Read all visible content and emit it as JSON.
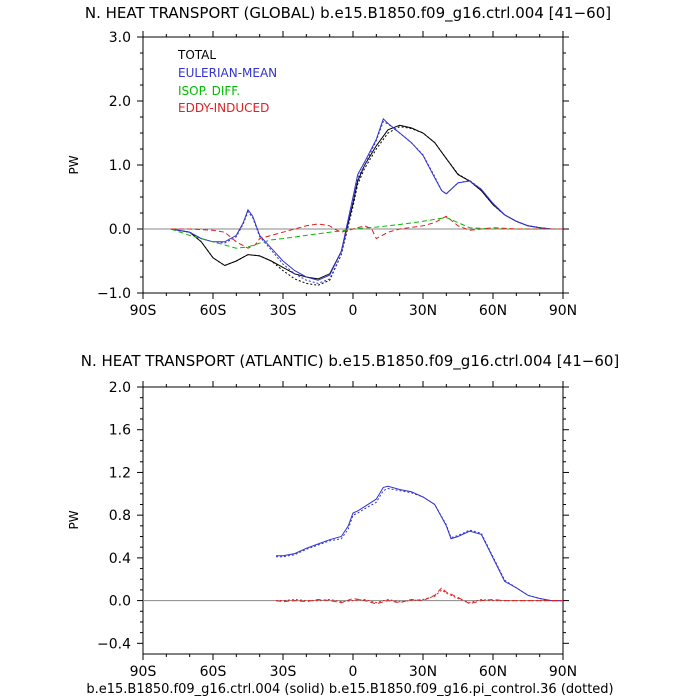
{
  "caption": "b.e15.B1850.f09_g16.ctrl.004 (solid) b.e15.B1850.f09_g16.pi_control.36 (dotted)",
  "colors": {
    "total": "#000000",
    "eulerian": "#3333cc",
    "isop": "#00bb00",
    "eddy": "#dd2222"
  },
  "chart_data": [
    {
      "type": "line",
      "title": "N. HEAT TRANSPORT (GLOBAL) b.e15.B1850.f09_g16.ctrl.004 [41−60]",
      "ylabel": "PW",
      "xlabel": "",
      "xlim": [
        -90,
        90
      ],
      "ylim": [
        -1.0,
        3.0
      ],
      "xticks": [
        -90,
        -60,
        -30,
        0,
        30,
        60,
        90
      ],
      "xtick_labels": [
        "90S",
        "60S",
        "30S",
        "0",
        "30N",
        "60N",
        "90N"
      ],
      "yticks": [
        -1.0,
        0.0,
        1.0,
        2.0,
        3.0
      ],
      "ytick_labels": [
        "−1.0",
        "0.0",
        "1.0",
        "2.0",
        "3.0"
      ],
      "legend": [
        "TOTAL",
        "EULERIAN-MEAN",
        "ISOP. DIFF.",
        "EDDY-INDUCED"
      ],
      "legend_position": "top-left",
      "series": [
        {
          "key": "total",
          "style": "solid",
          "color": "#000000",
          "x": [
            -78,
            -70,
            -65,
            -60,
            -55,
            -50,
            -45,
            -40,
            -35,
            -30,
            -25,
            -20,
            -15,
            -10,
            -5,
            0,
            2,
            5,
            10,
            15,
            20,
            25,
            30,
            35,
            40,
            45,
            50,
            55,
            60,
            65,
            70,
            75,
            80,
            85,
            90
          ],
          "y": [
            0.0,
            -0.05,
            -0.2,
            -0.45,
            -0.57,
            -0.5,
            -0.4,
            -0.42,
            -0.5,
            -0.6,
            -0.7,
            -0.75,
            -0.78,
            -0.7,
            -0.35,
            0.4,
            0.75,
            1.0,
            1.3,
            1.55,
            1.62,
            1.58,
            1.5,
            1.35,
            1.1,
            0.85,
            0.75,
            0.6,
            0.38,
            0.22,
            0.12,
            0.05,
            0.02,
            0.0,
            0.0
          ]
        },
        {
          "key": "total",
          "style": "dotted",
          "color": "#000000",
          "x": [
            -78,
            -70,
            -65,
            -60,
            -55,
            -50,
            -45,
            -40,
            -35,
            -30,
            -25,
            -20,
            -15,
            -10,
            -5,
            0,
            2,
            5,
            10,
            15,
            20,
            25,
            30,
            35,
            40,
            45,
            50,
            55,
            60,
            65,
            70,
            75,
            80,
            85,
            90
          ],
          "y": [
            0.0,
            -0.05,
            -0.2,
            -0.45,
            -0.57,
            -0.5,
            -0.4,
            -0.42,
            -0.5,
            -0.65,
            -0.78,
            -0.85,
            -0.88,
            -0.8,
            -0.4,
            0.35,
            0.7,
            0.95,
            1.25,
            1.5,
            1.6,
            1.57,
            1.5,
            1.35,
            1.1,
            0.86,
            0.75,
            0.6,
            0.38,
            0.22,
            0.12,
            0.05,
            0.02,
            0.0,
            0.0
          ]
        },
        {
          "key": "eulerian",
          "style": "solid",
          "color": "#3333cc",
          "x": [
            -78,
            -70,
            -65,
            -60,
            -55,
            -50,
            -47,
            -45,
            -43,
            -40,
            -35,
            -30,
            -25,
            -20,
            -15,
            -10,
            -5,
            0,
            2,
            5,
            10,
            13,
            15,
            20,
            25,
            30,
            35,
            38,
            40,
            45,
            50,
            55,
            60,
            65,
            70,
            75,
            80,
            85,
            90
          ],
          "y": [
            0.0,
            -0.05,
            -0.15,
            -0.2,
            -0.2,
            -0.1,
            0.1,
            0.3,
            0.2,
            -0.1,
            -0.3,
            -0.5,
            -0.65,
            -0.75,
            -0.8,
            -0.72,
            -0.35,
            0.5,
            0.85,
            1.05,
            1.4,
            1.72,
            1.65,
            1.5,
            1.35,
            1.15,
            0.8,
            0.6,
            0.55,
            0.72,
            0.75,
            0.62,
            0.4,
            0.22,
            0.12,
            0.05,
            0.02,
            0.0,
            0.0
          ]
        },
        {
          "key": "eulerian",
          "style": "dotted",
          "color": "#3333cc",
          "x": [
            -78,
            -70,
            -65,
            -60,
            -55,
            -50,
            -47,
            -45,
            -43,
            -40,
            -35,
            -30,
            -25,
            -20,
            -15,
            -10,
            -5,
            0,
            2,
            5,
            10,
            13,
            15,
            20,
            25,
            30,
            35,
            38,
            40,
            45,
            50,
            55,
            60,
            65,
            70,
            75,
            80,
            85,
            90
          ],
          "y": [
            0.0,
            -0.05,
            -0.15,
            -0.2,
            -0.22,
            -0.12,
            0.08,
            0.27,
            0.18,
            -0.12,
            -0.33,
            -0.55,
            -0.7,
            -0.8,
            -0.85,
            -0.78,
            -0.4,
            0.45,
            0.8,
            1.0,
            1.38,
            1.68,
            1.64,
            1.5,
            1.35,
            1.16,
            0.82,
            0.6,
            0.55,
            0.72,
            0.76,
            0.62,
            0.4,
            0.22,
            0.12,
            0.05,
            0.02,
            0.0,
            0.0
          ]
        },
        {
          "key": "isop",
          "style": "dashed",
          "color": "#00bb00",
          "x": [
            -78,
            -70,
            -60,
            -55,
            -50,
            -45,
            -40,
            -35,
            -30,
            -20,
            -10,
            -5,
            0,
            10,
            20,
            30,
            35,
            40,
            45,
            50,
            60,
            70,
            80,
            90
          ],
          "y": [
            0.0,
            -0.1,
            -0.2,
            -0.25,
            -0.3,
            -0.28,
            -0.22,
            -0.17,
            -0.15,
            -0.1,
            -0.05,
            -0.03,
            0.0,
            0.03,
            0.07,
            0.12,
            0.15,
            0.18,
            0.1,
            0.02,
            0.0,
            0.0,
            0.0,
            0.0
          ]
        },
        {
          "key": "eddy",
          "style": "dashed",
          "color": "#dd2222",
          "x": [
            -78,
            -70,
            -60,
            -55,
            -50,
            -45,
            -42,
            -40,
            -35,
            -30,
            -25,
            -20,
            -15,
            -10,
            -8,
            -5,
            0,
            5,
            8,
            10,
            15,
            20,
            30,
            35,
            40,
            45,
            50,
            55,
            60,
            70,
            80,
            90
          ],
          "y": [
            0.0,
            0.0,
            -0.02,
            -0.05,
            -0.2,
            -0.3,
            -0.25,
            -0.15,
            -0.1,
            -0.05,
            0.0,
            0.05,
            0.08,
            0.05,
            0.0,
            -0.05,
            0.0,
            0.05,
            0.0,
            -0.15,
            -0.05,
            0.0,
            0.05,
            0.1,
            0.2,
            0.05,
            -0.02,
            0.0,
            0.02,
            0.0,
            0.0,
            0.0
          ]
        }
      ]
    },
    {
      "type": "line",
      "title": "N. HEAT TRANSPORT (ATLANTIC) b.e15.B1850.f09_g16.ctrl.004 [41−60]",
      "ylabel": "PW",
      "xlabel": "",
      "xlim": [
        -90,
        90
      ],
      "ylim": [
        -0.5,
        2.0
      ],
      "xticks": [
        -90,
        -60,
        -30,
        0,
        30,
        60,
        90
      ],
      "xtick_labels": [
        "90S",
        "60S",
        "30S",
        "0",
        "30N",
        "60N",
        "90N"
      ],
      "yticks": [
        -0.4,
        0.0,
        0.4,
        0.8,
        1.2,
        1.6,
        2.0
      ],
      "ytick_labels": [
        "−0.4",
        "0.0",
        "0.4",
        "0.8",
        "1.2",
        "1.6",
        "2.0"
      ],
      "series": [
        {
          "key": "eulerian",
          "style": "solid",
          "color": "#3333cc",
          "x": [
            -33,
            -30,
            -25,
            -20,
            -15,
            -10,
            -5,
            -2,
            0,
            2,
            5,
            10,
            13,
            15,
            20,
            25,
            30,
            35,
            40,
            42,
            45,
            50,
            55,
            60,
            65,
            70,
            75,
            80,
            85,
            90
          ],
          "y": [
            0.42,
            0.42,
            0.44,
            0.49,
            0.53,
            0.57,
            0.6,
            0.7,
            0.82,
            0.84,
            0.88,
            0.95,
            1.06,
            1.07,
            1.04,
            1.02,
            0.97,
            0.9,
            0.7,
            0.58,
            0.6,
            0.65,
            0.62,
            0.4,
            0.18,
            0.12,
            0.05,
            0.02,
            0.0,
            0.0
          ]
        },
        {
          "key": "eulerian",
          "style": "dotted",
          "color": "#3333cc",
          "x": [
            -33,
            -30,
            -25,
            -20,
            -15,
            -10,
            -5,
            -2,
            0,
            2,
            5,
            10,
            13,
            15,
            20,
            25,
            30,
            35,
            40,
            42,
            45,
            50,
            55,
            60,
            65,
            70,
            75,
            80,
            85,
            90
          ],
          "y": [
            0.41,
            0.41,
            0.43,
            0.48,
            0.52,
            0.56,
            0.58,
            0.67,
            0.8,
            0.82,
            0.86,
            0.92,
            1.03,
            1.05,
            1.03,
            1.01,
            0.97,
            0.9,
            0.71,
            0.59,
            0.61,
            0.66,
            0.63,
            0.41,
            0.19,
            0.12,
            0.05,
            0.02,
            0.0,
            0.0
          ]
        },
        {
          "key": "eddy",
          "style": "dashed",
          "color": "#dd2222",
          "x": [
            -33,
            -30,
            -25,
            -20,
            -15,
            -10,
            -5,
            0,
            5,
            10,
            15,
            20,
            25,
            30,
            35,
            38,
            40,
            45,
            50,
            55,
            60,
            65,
            70,
            80,
            90
          ],
          "y": [
            0.0,
            -0.01,
            0.0,
            -0.01,
            0.01,
            0.0,
            -0.02,
            0.02,
            0.0,
            -0.03,
            0.0,
            -0.02,
            0.01,
            0.0,
            0.05,
            0.12,
            0.08,
            0.03,
            -0.03,
            0.0,
            0.01,
            0.0,
            0.0,
            0.0,
            0.0
          ]
        },
        {
          "key": "eddy",
          "style": "dotted",
          "color": "#dd2222",
          "x": [
            -33,
            -30,
            -25,
            -20,
            -15,
            -10,
            -5,
            0,
            5,
            10,
            15,
            20,
            25,
            30,
            35,
            38,
            40,
            45,
            50,
            55,
            60,
            65,
            70,
            80,
            90
          ],
          "y": [
            0.0,
            0.0,
            0.01,
            0.0,
            0.0,
            0.01,
            -0.01,
            0.0,
            0.01,
            -0.02,
            0.01,
            -0.01,
            0.0,
            0.01,
            0.04,
            0.1,
            0.07,
            0.02,
            -0.02,
            0.01,
            0.0,
            0.0,
            0.0,
            0.0,
            0.0
          ]
        }
      ]
    }
  ]
}
